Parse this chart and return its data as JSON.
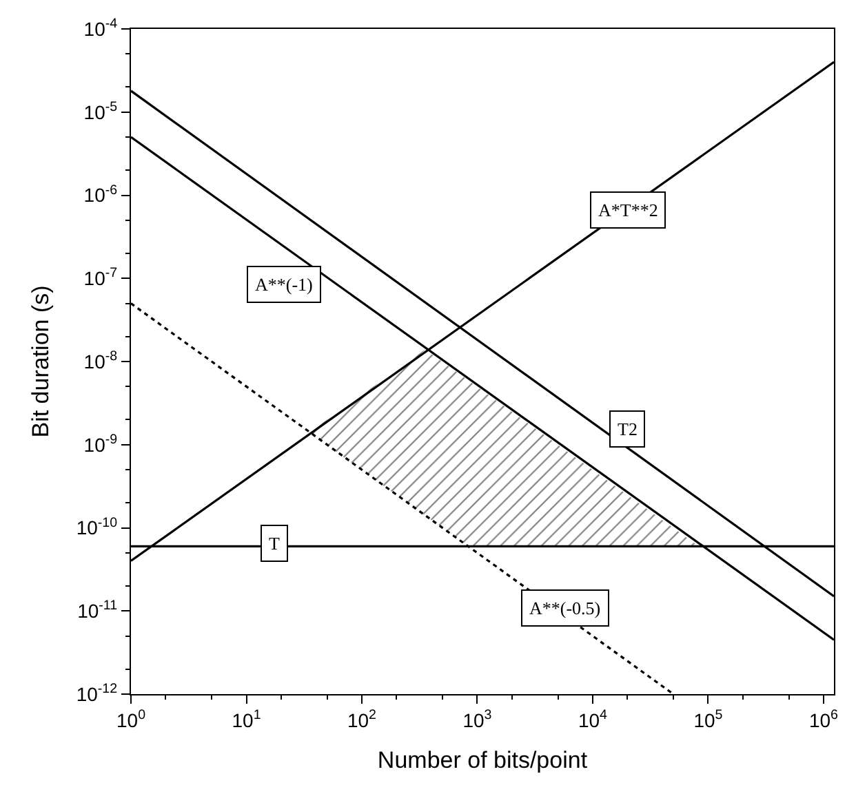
{
  "chart_data": {
    "type": "line",
    "xlabel": "Number of bits/point",
    "ylabel": "Bit duration (s)",
    "log": "xy",
    "marker": "none",
    "xlim": [
      1,
      1230000
    ],
    "ylim": [
      1e-12,
      0.0001
    ],
    "xticks": [
      {
        "value": 1,
        "label": "10$^{0}$"
      },
      {
        "value": 10,
        "label": "10$^{1}$"
      },
      {
        "value": 100,
        "label": "10$^{2}$"
      },
      {
        "value": 1000,
        "label": "10$^{3}$"
      },
      {
        "value": 10000,
        "label": "10$^{4}$"
      },
      {
        "value": 100000,
        "label": "10$^{5}$"
      },
      {
        "value": 1000000,
        "label": "10$^{6}$"
      }
    ],
    "yticks": [
      {
        "value": 1e-12,
        "label": "10$^{-12}$"
      },
      {
        "value": 1e-11,
        "label": "10$^{-11}$"
      },
      {
        "value": 1e-10,
        "label": "10$^{-10}$"
      },
      {
        "value": 1e-09,
        "label": "10$^{-9}$"
      },
      {
        "value": 1e-08,
        "label": "10$^{-8}$"
      },
      {
        "value": 1e-07,
        "label": "10$^{-7}$"
      },
      {
        "value": 1e-06,
        "label": "10$^{-6}$"
      },
      {
        "value": 1e-05,
        "label": "10$^{-5}$"
      },
      {
        "value": 0.0001,
        "label": "10$^{-4}$"
      }
    ],
    "series": [
      {
        "type": "area",
        "color": "#000000",
        "x": [
          35,
          354,
          83000,
          833,
          35
        ],
        "values": [
          1.4e-09,
          1.4e-08,
          6e-11,
          6e-11,
          1.4e-09
        ]
      },
      {
        "color": "#000000",
        "line_style": "solid",
        "x": [
          1,
          1230000
        ],
        "values": [
          1.8e-05,
          1.5e-11
        ]
      },
      {
        "color": "#000000",
        "line_style": "solid",
        "x": [
          1,
          1230000
        ],
        "values": [
          5e-06,
          4.5e-12
        ]
      },
      {
        "color": "#000000",
        "line_style": "dotted",
        "x": [
          1,
          50000
        ],
        "values": [
          5e-08,
          1e-12
        ]
      },
      {
        "color": "#000000",
        "line_style": "solid",
        "x": [
          1,
          1230000
        ],
        "values": [
          4e-11,
          4e-05
        ]
      },
      {
        "color": "#000000",
        "line_style": "solid",
        "x": [
          1,
          1230000
        ],
        "values": [
          6e-11,
          6e-11
        ]
      }
    ],
    "annotations": [
      "A*T**2",
      "A**(-1)",
      "T2",
      "T",
      "A**(-0.5)"
    ]
  }
}
